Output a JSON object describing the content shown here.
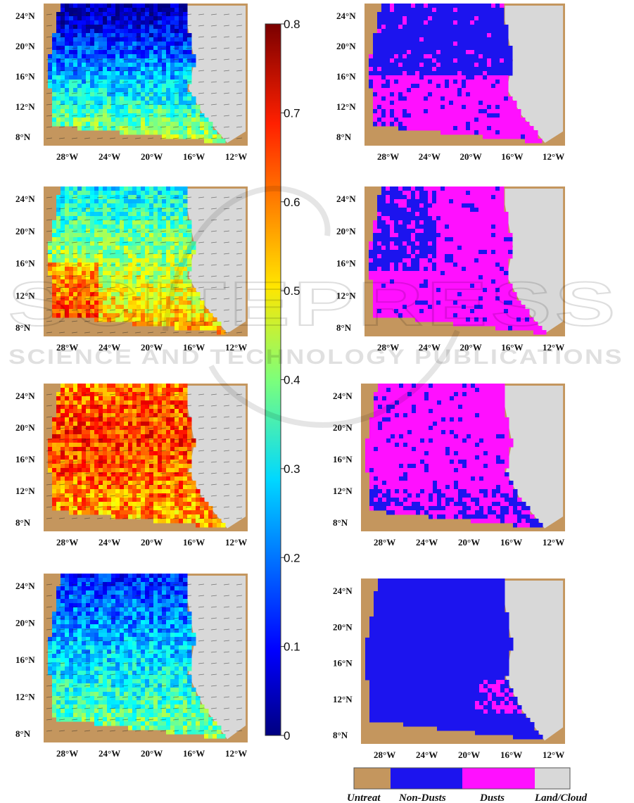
{
  "colors": {
    "untreat": "#c4965e",
    "non_dusts": "#1c14ee",
    "dusts": "#ff10ff",
    "land_cloud": "#d8d8d8"
  },
  "watermark": {
    "big": "SCITEPRESS",
    "small": "SCIENCE AND TECHNOLOGY PUBLICATIONS"
  },
  "chart_data": [
    {
      "type": "heatmap",
      "panels": "left column: aerosol optical depth maps with wind vectors (4 panels)",
      "x_ticks": [
        "28°W",
        "24°W",
        "20°W",
        "16°W",
        "12°W"
      ],
      "y_ticks": [
        "24°N",
        "20°N",
        "16°N",
        "12°N",
        "8°N"
      ],
      "colorbar": {
        "ticks": [
          "0.8",
          "0.7",
          "0.6",
          "0.5",
          "0.4",
          "0.3",
          "0.2",
          "0.1",
          "0"
        ],
        "range": [
          0,
          0.8
        ],
        "colormap": "jet"
      },
      "panel_mean_levels": [
        0.22,
        0.42,
        0.58,
        0.26
      ]
    },
    {
      "type": "heatmap",
      "panels": "right column: dust classification maps (4 panels)",
      "x_ticks": [
        "28°W",
        "24°W",
        "20°W",
        "16°W",
        "12°W"
      ],
      "y_ticks": [
        "24°N",
        "20°N",
        "16°N",
        "12°N",
        "8°N"
      ],
      "legend": [
        "Untreat",
        "Non-Dusts",
        "Dusts",
        "Land/Cloud"
      ],
      "dust_fraction_levels": [
        0.35,
        0.7,
        0.85,
        0.03
      ]
    }
  ]
}
